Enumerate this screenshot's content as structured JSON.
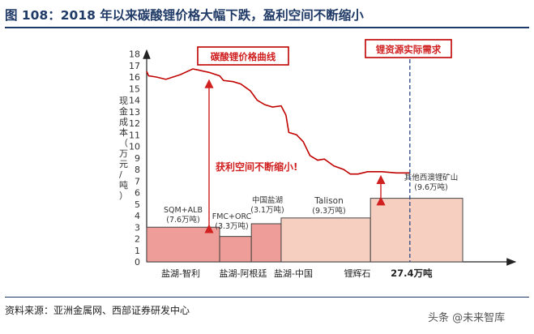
{
  "figure_title": "图 108：2018 年以来碳酸锂价格大幅下跌，盈利空间不断缩小",
  "source": "资料来源：亚洲金属网、西部证券研发中心",
  "watermark": "头条 @未来智库",
  "chart_data": {
    "type": "area",
    "ylabel": "现金成本（万元/吨）",
    "ylim": [
      0,
      18
    ],
    "yticks": [
      0,
      1,
      2,
      3,
      4,
      5,
      6,
      7,
      8,
      9,
      10,
      11,
      12,
      13,
      14,
      15,
      16,
      17,
      18
    ],
    "price_box_label": "碳酸锂价格曲线",
    "demand_box_label": "锂资源实际需求",
    "gap_label": "获利空间不断缩小!",
    "total_label": "27.4万吨",
    "category_labels": [
      "盐湖-智利",
      "盐湖-阿根廷",
      "盐湖-中国",
      "锂辉石"
    ],
    "supply_curve": [
      {
        "name": "SQM+ALB",
        "capacity_label": "(7.6万吨)",
        "cost": 3.0,
        "capacity": 7.6
      },
      {
        "name": "FMC+ORC",
        "capacity_label": "(3.3万吨)",
        "cost": 2.2,
        "capacity": 3.3
      },
      {
        "name": "中国盐湖",
        "capacity_label": "(3.1万吨)",
        "cost": 3.3,
        "capacity": 3.1
      },
      {
        "name": "Talison",
        "capacity_label": "(9.3万吨)",
        "cost": 3.8,
        "capacity": 9.3
      },
      {
        "name": "其他西澳锂矿山",
        "capacity_label": "(9.6万吨)",
        "cost": 5.5,
        "capacity": 9.6
      }
    ],
    "price_curve": [
      [
        0.0,
        16.5
      ],
      [
        0.2,
        16.1
      ],
      [
        1.0,
        16.0
      ],
      [
        2.0,
        15.8
      ],
      [
        3.5,
        16.2
      ],
      [
        4.8,
        16.7
      ],
      [
        5.4,
        16.6
      ],
      [
        6.5,
        16.4
      ],
      [
        7.6,
        16.1
      ],
      [
        8.0,
        15.7
      ],
      [
        9.0,
        15.6
      ],
      [
        9.8,
        15.4
      ],
      [
        10.8,
        14.8
      ],
      [
        11.5,
        14.0
      ],
      [
        12.3,
        13.6
      ],
      [
        13.1,
        13.4
      ],
      [
        14.0,
        13.5
      ],
      [
        14.5,
        12.7
      ],
      [
        14.8,
        11.2
      ],
      [
        15.6,
        11.0
      ],
      [
        16.3,
        10.4
      ],
      [
        17.0,
        9.2
      ],
      [
        17.8,
        8.8
      ],
      [
        18.5,
        8.9
      ],
      [
        19.5,
        8.3
      ],
      [
        20.5,
        8.0
      ],
      [
        21.2,
        7.6
      ],
      [
        22.0,
        7.6
      ],
      [
        23.0,
        7.8
      ],
      [
        24.5,
        7.8
      ],
      [
        26.0,
        7.7
      ],
      [
        27.4,
        7.7
      ]
    ],
    "demand_line_x": 27.4
  }
}
